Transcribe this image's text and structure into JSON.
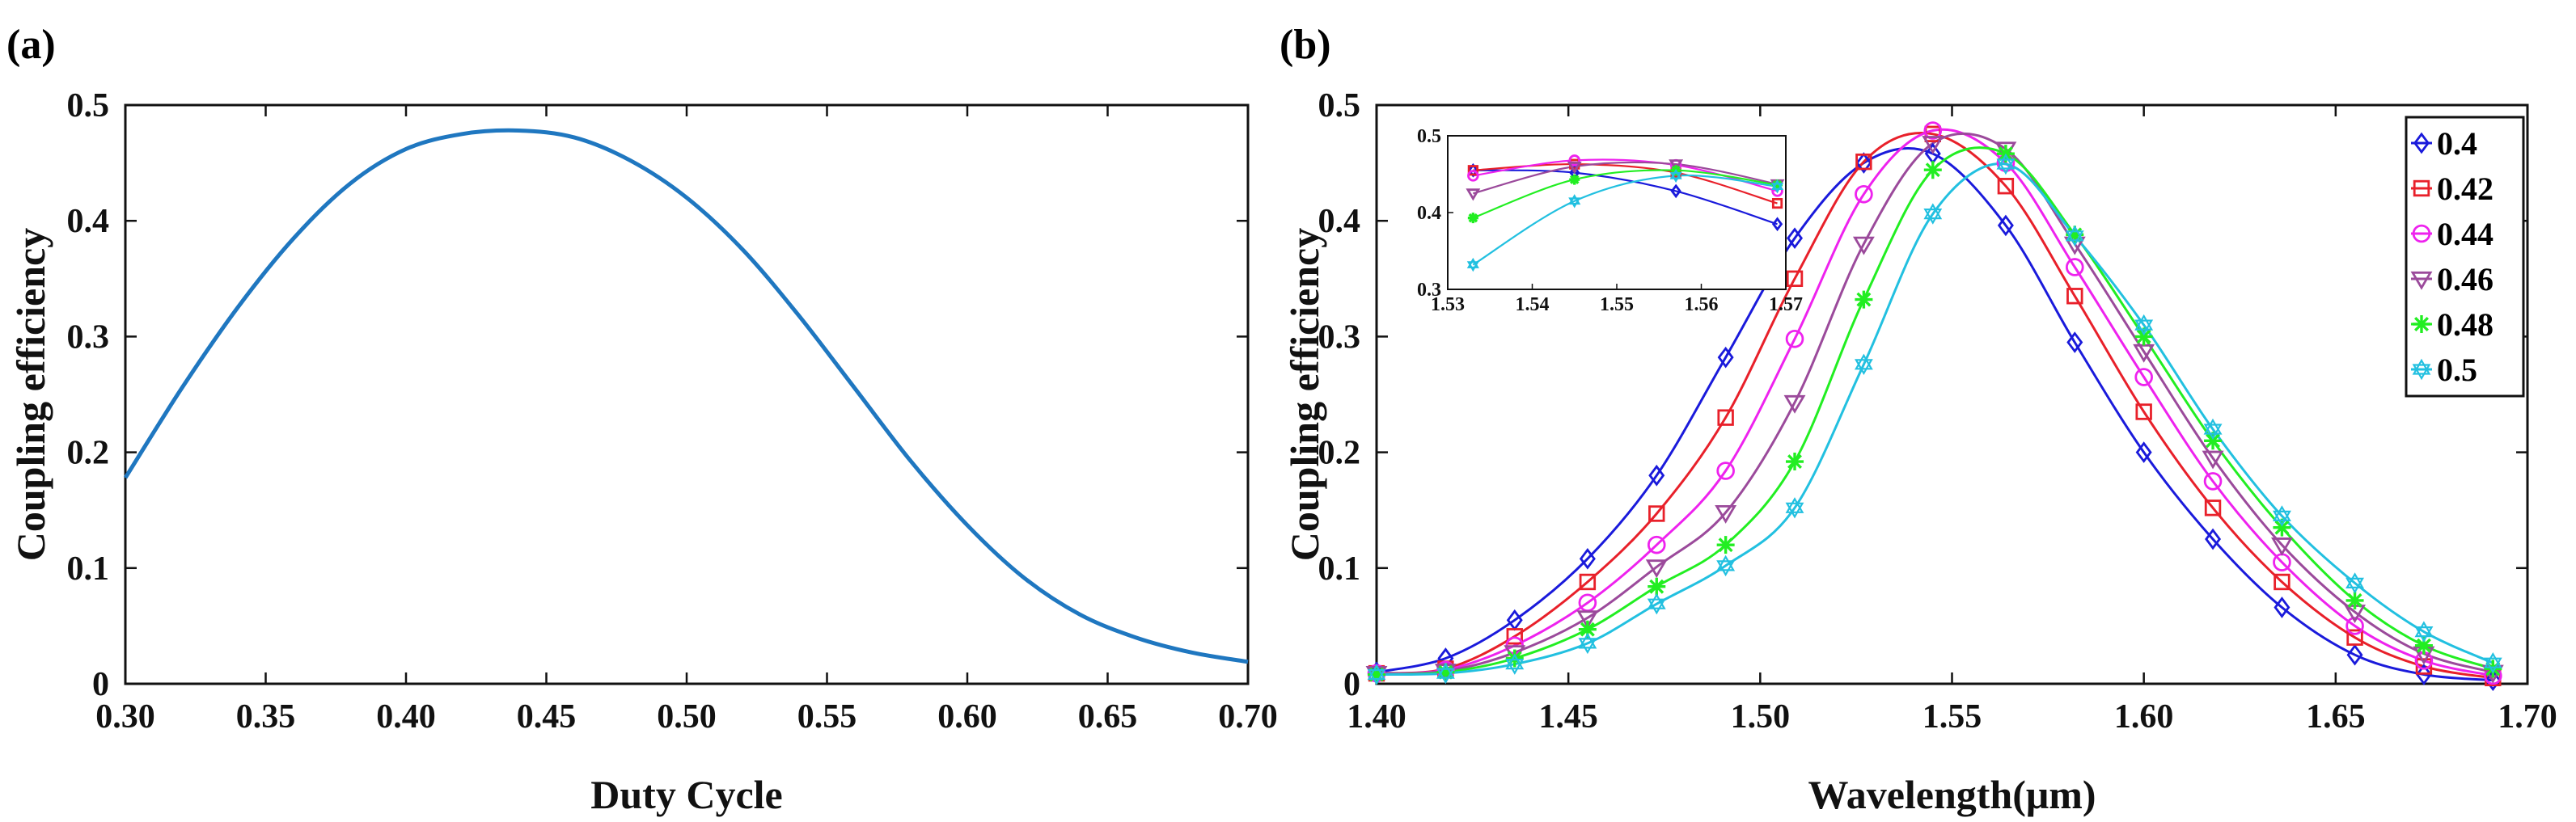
{
  "panels": {
    "a": "(a)",
    "b": "(b)"
  },
  "chart_data": [
    {
      "type": "line",
      "panel": "(a)",
      "title": "",
      "xlabel": "Duty Cycle",
      "ylabel": "Coupling efficiency",
      "xlim": [
        0.3,
        0.7
      ],
      "ylim": [
        0,
        0.5
      ],
      "xticks": [
        "0.30",
        "0.35",
        "0.40",
        "0.45",
        "0.50",
        "0.55",
        "0.60",
        "0.65",
        "0.70"
      ],
      "yticks": [
        "0",
        "0.1",
        "0.2",
        "0.3",
        "0.4",
        "0.5"
      ],
      "color": "#1f77c0",
      "series": [
        {
          "name": "Coupling efficiency",
          "x": [
            0.3,
            0.32,
            0.34,
            0.36,
            0.38,
            0.4,
            0.42,
            0.44,
            0.46,
            0.48,
            0.5,
            0.52,
            0.54,
            0.56,
            0.58,
            0.6,
            0.62,
            0.64,
            0.66,
            0.68,
            0.7
          ],
          "y": [
            0.178,
            0.255,
            0.325,
            0.385,
            0.432,
            0.462,
            0.475,
            0.478,
            0.472,
            0.452,
            0.42,
            0.375,
            0.318,
            0.255,
            0.192,
            0.137,
            0.092,
            0.06,
            0.04,
            0.027,
            0.019
          ]
        }
      ]
    },
    {
      "type": "line",
      "panel": "(b)",
      "title": "",
      "xlabel": "Wavelength(μm)",
      "ylabel": "Coupling efficiency",
      "xlim": [
        1.4,
        1.7
      ],
      "ylim": [
        0,
        0.5
      ],
      "xticks": [
        "1.40",
        "1.45",
        "1.50",
        "1.55",
        "1.60",
        "1.65",
        "1.70"
      ],
      "yticks": [
        "0",
        "0.1",
        "0.2",
        "0.3",
        "0.4",
        "0.5"
      ],
      "legend_position": "top-right",
      "series": [
        {
          "name": "0.4",
          "color": "#1a1adb",
          "marker": "diamond",
          "x": [
            1.4,
            1.418,
            1.436,
            1.455,
            1.473,
            1.491,
            1.509,
            1.527,
            1.545,
            1.564,
            1.582,
            1.6,
            1.618,
            1.636,
            1.655,
            1.673,
            1.691
          ],
          "y": [
            0.01,
            0.022,
            0.055,
            0.108,
            0.18,
            0.282,
            0.385,
            0.45,
            0.458,
            0.396,
            0.295,
            0.2,
            0.125,
            0.066,
            0.025,
            0.008,
            0.003
          ]
        },
        {
          "name": "0.42",
          "color": "#e8202a",
          "marker": "square",
          "x": [
            1.4,
            1.418,
            1.436,
            1.455,
            1.473,
            1.491,
            1.509,
            1.527,
            1.545,
            1.564,
            1.582,
            1.6,
            1.618,
            1.636,
            1.655,
            1.673,
            1.691
          ],
          "y": [
            0.009,
            0.013,
            0.041,
            0.088,
            0.147,
            0.23,
            0.35,
            0.451,
            0.475,
            0.43,
            0.335,
            0.235,
            0.152,
            0.088,
            0.04,
            0.015,
            0.005
          ]
        },
        {
          "name": "0.44",
          "color": "#ee22ee",
          "marker": "circle",
          "x": [
            1.4,
            1.418,
            1.436,
            1.455,
            1.473,
            1.491,
            1.509,
            1.527,
            1.545,
            1.564,
            1.582,
            1.6,
            1.618,
            1.636,
            1.655,
            1.673,
            1.691
          ],
          "y": [
            0.009,
            0.012,
            0.033,
            0.07,
            0.12,
            0.184,
            0.298,
            0.423,
            0.478,
            0.45,
            0.36,
            0.265,
            0.175,
            0.105,
            0.05,
            0.02,
            0.007
          ]
        },
        {
          "name": "0.46",
          "color": "#9b4a9b",
          "marker": "triangle-down",
          "x": [
            1.4,
            1.418,
            1.436,
            1.455,
            1.473,
            1.491,
            1.509,
            1.527,
            1.545,
            1.564,
            1.582,
            1.6,
            1.618,
            1.636,
            1.655,
            1.673,
            1.691
          ],
          "y": [
            0.009,
            0.011,
            0.027,
            0.057,
            0.101,
            0.148,
            0.243,
            0.38,
            0.467,
            0.462,
            0.38,
            0.287,
            0.195,
            0.12,
            0.062,
            0.026,
            0.01
          ]
        },
        {
          "name": "0.48",
          "color": "#22ee22",
          "marker": "asterisk",
          "x": [
            1.4,
            1.418,
            1.436,
            1.455,
            1.473,
            1.491,
            1.509,
            1.527,
            1.545,
            1.564,
            1.582,
            1.6,
            1.618,
            1.636,
            1.655,
            1.673,
            1.691
          ],
          "y": [
            0.008,
            0.01,
            0.022,
            0.047,
            0.084,
            0.12,
            0.192,
            0.332,
            0.444,
            0.458,
            0.388,
            0.3,
            0.21,
            0.135,
            0.072,
            0.033,
            0.013
          ]
        },
        {
          "name": "0.5",
          "color": "#22c0e0",
          "marker": "hexagram",
          "x": [
            1.4,
            1.418,
            1.436,
            1.455,
            1.473,
            1.491,
            1.509,
            1.527,
            1.545,
            1.564,
            1.582,
            1.6,
            1.618,
            1.636,
            1.655,
            1.673,
            1.691
          ],
          "y": [
            0.008,
            0.009,
            0.017,
            0.035,
            0.069,
            0.102,
            0.152,
            0.276,
            0.406,
            0.449,
            0.387,
            0.31,
            0.22,
            0.145,
            0.087,
            0.045,
            0.018
          ]
        }
      ],
      "inset": {
        "xlim": [
          1.53,
          1.57
        ],
        "ylim": [
          0.3,
          0.5
        ],
        "xticks": [
          "1.53",
          "1.54",
          "1.55",
          "1.56",
          "1.57"
        ],
        "yticks": [
          "0.3",
          "0.4",
          "0.5"
        ],
        "x": [
          1.533,
          1.545,
          1.557,
          1.569
        ],
        "series_y": {
          "0.4": [
            0.455,
            0.452,
            0.428,
            0.385
          ],
          "0.42": [
            0.455,
            0.463,
            0.452,
            0.412
          ],
          "0.44": [
            0.448,
            0.468,
            0.462,
            0.428
          ],
          "0.46": [
            0.425,
            0.46,
            0.463,
            0.437
          ],
          "0.48": [
            0.393,
            0.443,
            0.455,
            0.436
          ],
          "0.5": [
            0.332,
            0.415,
            0.448,
            0.434
          ]
        }
      }
    }
  ]
}
